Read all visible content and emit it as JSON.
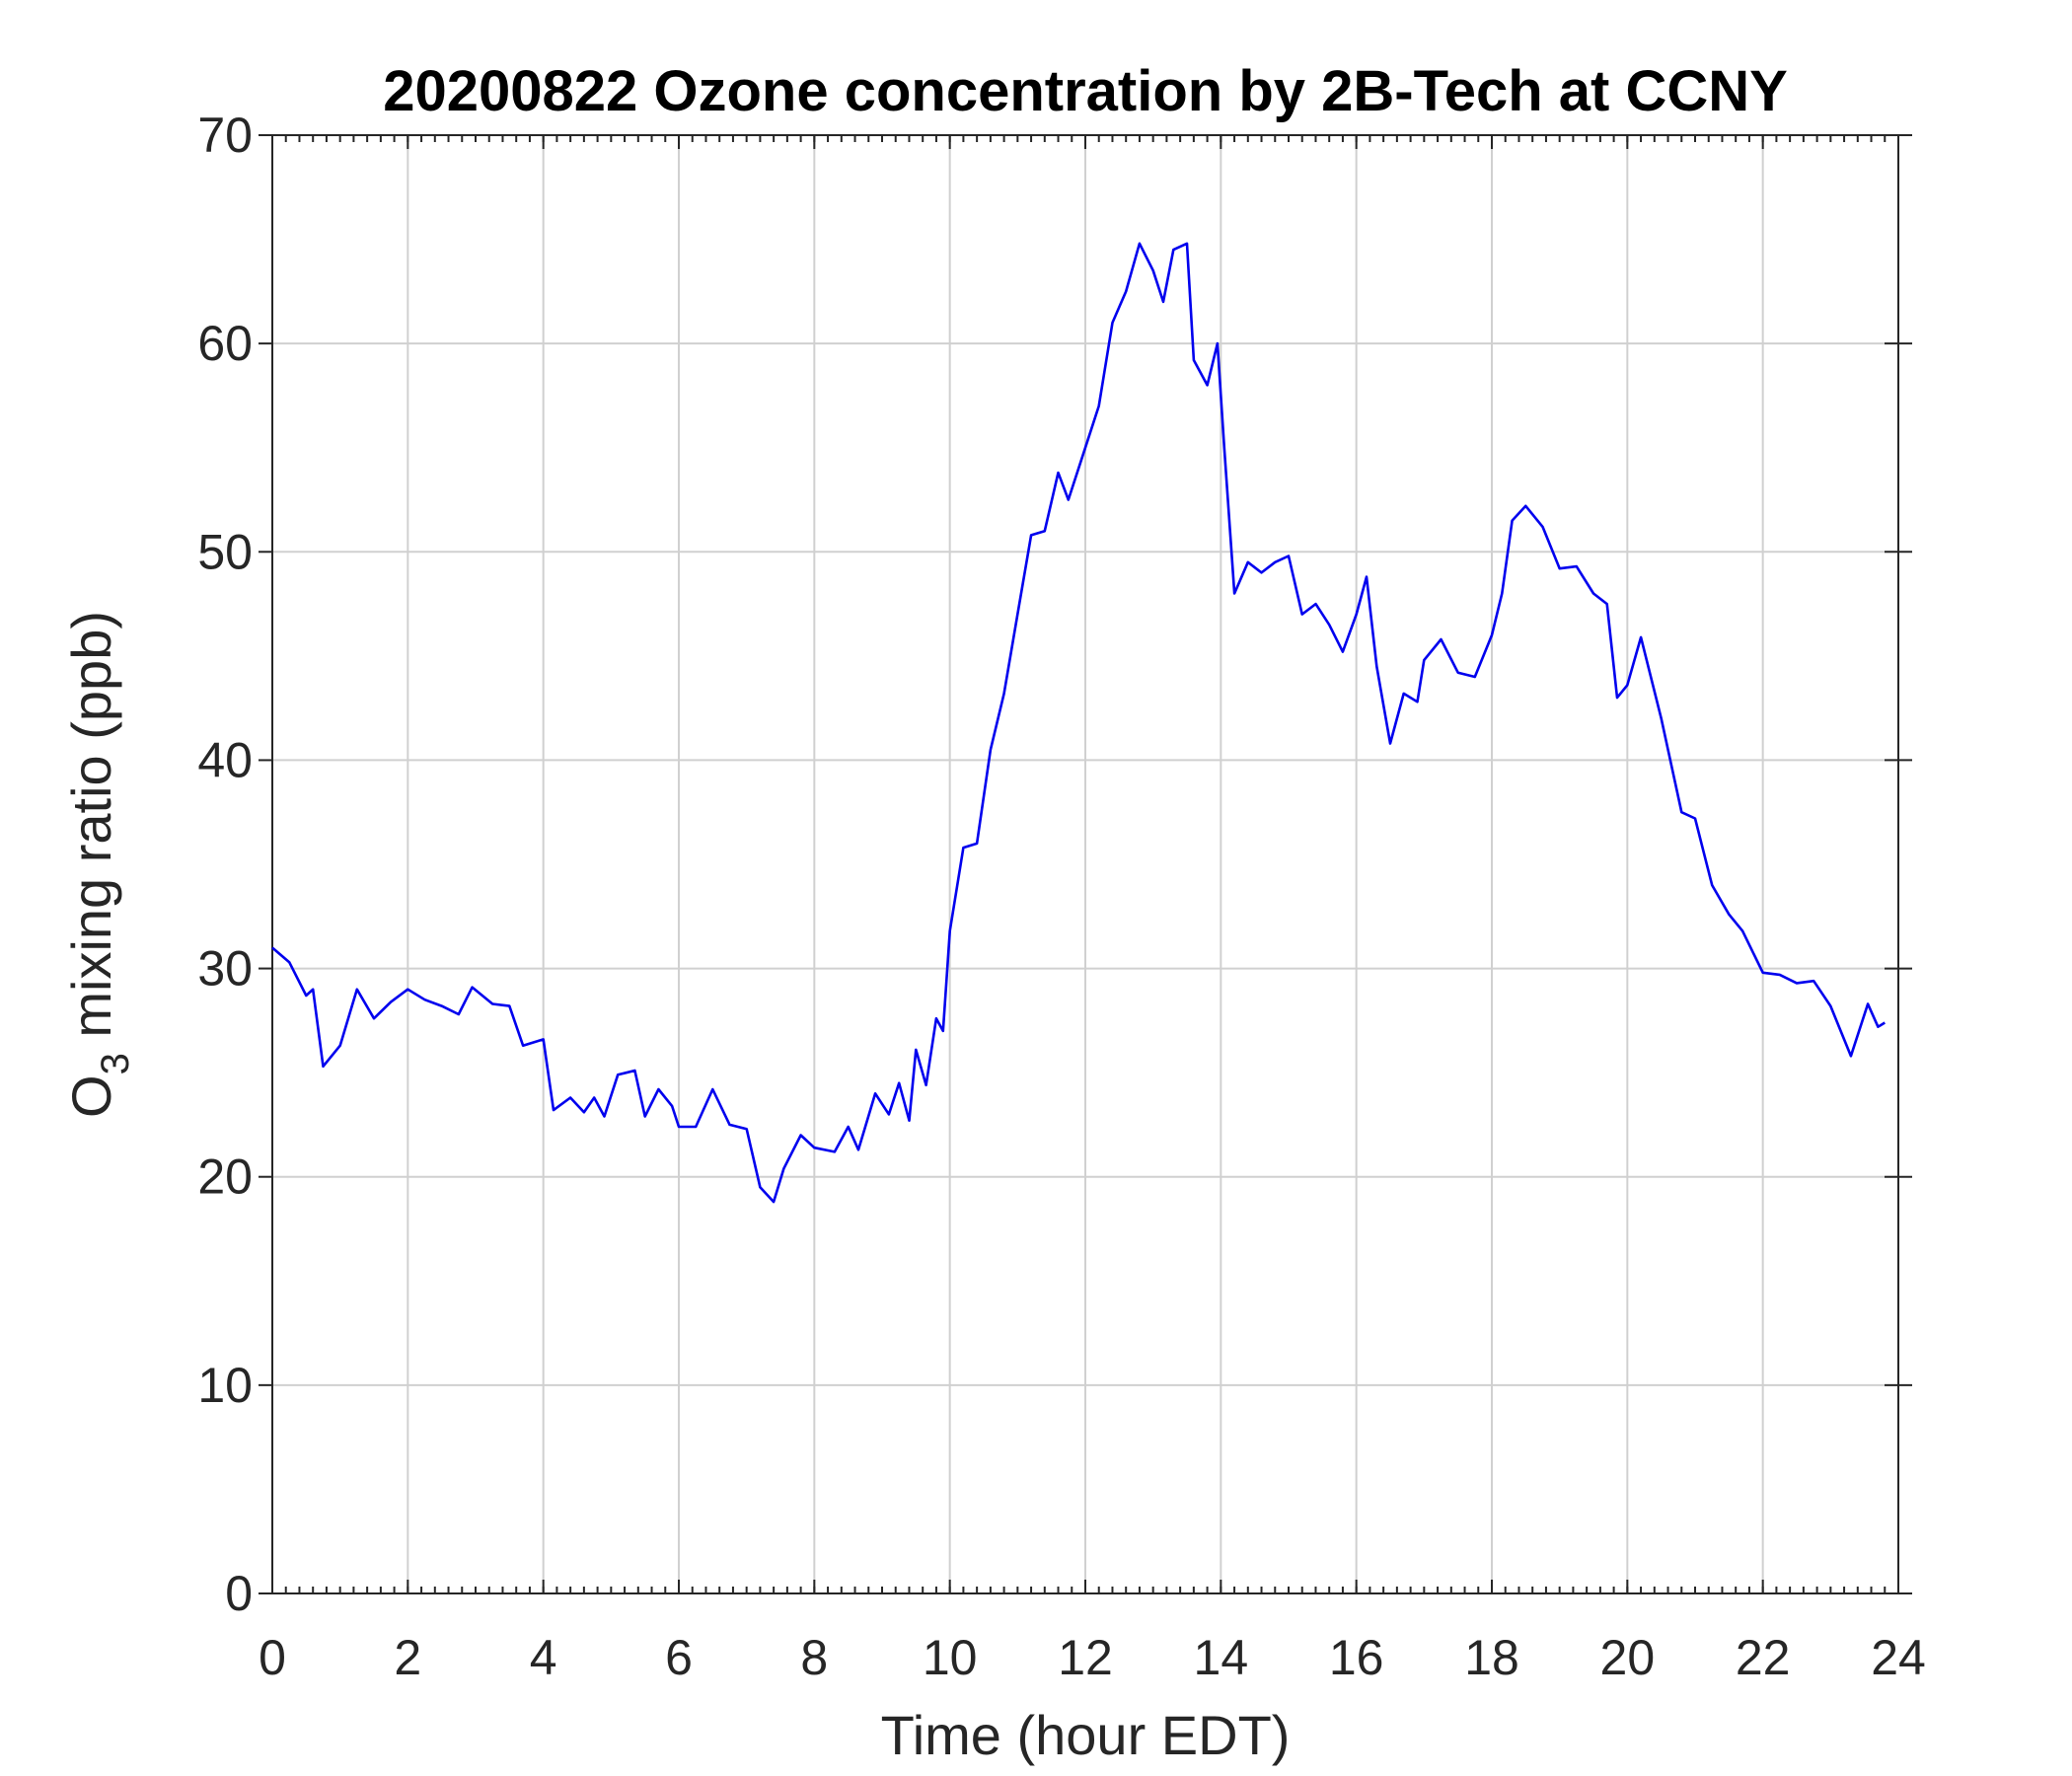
{
  "chart_data": {
    "type": "line",
    "title": "20200822 Ozone concentration by 2B-Tech at CCNY",
    "xlabel": "Time (hour EDT)",
    "ylabel_main": "O",
    "ylabel_sub": "3",
    "ylabel_rest": " mixing ratio (ppb)",
    "xlim": [
      0,
      24
    ],
    "ylim": [
      0,
      70
    ],
    "xticks": [
      "0",
      "2",
      "4",
      "6",
      "8",
      "10",
      "12",
      "14",
      "16",
      "18",
      "20",
      "22",
      "24"
    ],
    "yticks": [
      "0",
      "10",
      "20",
      "30",
      "40",
      "50",
      "60",
      "70"
    ],
    "grid": true,
    "color": "#0000ee",
    "series": [
      {
        "name": "O3",
        "x": [
          0,
          0.25,
          0.5,
          0.6,
          0.75,
          1.0,
          1.25,
          1.5,
          1.75,
          2.0,
          2.25,
          2.5,
          2.75,
          2.95,
          3.25,
          3.5,
          3.7,
          4.0,
          4.15,
          4.4,
          4.6,
          4.75,
          4.9,
          5.1,
          5.35,
          5.5,
          5.7,
          5.9,
          6.0,
          6.25,
          6.5,
          6.75,
          7.0,
          7.2,
          7.4,
          7.55,
          7.8,
          8.0,
          8.3,
          8.5,
          8.65,
          8.9,
          9.1,
          9.25,
          9.4,
          9.5,
          9.65,
          9.8,
          9.9,
          10.0,
          10.2,
          10.4,
          10.6,
          10.8,
          11.0,
          11.2,
          11.4,
          11.6,
          11.75,
          12.0,
          12.2,
          12.4,
          12.6,
          12.8,
          13.0,
          13.15,
          13.3,
          13.5,
          13.6,
          13.8,
          13.95,
          14.05,
          14.2,
          14.4,
          14.6,
          14.8,
          15.0,
          15.2,
          15.4,
          15.6,
          15.8,
          16.0,
          16.15,
          16.3,
          16.5,
          16.7,
          16.9,
          17.0,
          17.25,
          17.5,
          17.75,
          18.0,
          18.15,
          18.3,
          18.5,
          18.75,
          19.0,
          19.25,
          19.5,
          19.7,
          19.85,
          20.0,
          20.2,
          20.5,
          20.8,
          21.0,
          21.25,
          21.5,
          21.7,
          22.0,
          22.25,
          22.5,
          22.75,
          23.0,
          23.3,
          23.55,
          23.7,
          23.8
        ],
        "y": [
          31,
          30.3,
          28.7,
          29,
          25.3,
          26.3,
          29,
          27.6,
          28.4,
          29,
          28.5,
          28.2,
          27.8,
          29.1,
          28.3,
          28.2,
          26.3,
          26.6,
          23.2,
          23.8,
          23.1,
          23.8,
          22.9,
          24.9,
          25.1,
          22.9,
          24.2,
          23.4,
          22.4,
          22.4,
          24.2,
          22.5,
          22.3,
          19.5,
          18.8,
          20.4,
          22,
          21.4,
          21.2,
          22.4,
          21.3,
          24,
          23,
          24.5,
          22.7,
          26.1,
          24.4,
          27.6,
          27,
          31.8,
          35.8,
          36,
          40.5,
          43.2,
          47,
          50.8,
          51,
          53.8,
          52.5,
          55,
          57,
          61,
          62.5,
          64.8,
          63.5,
          62,
          64.5,
          64.8,
          59.2,
          58,
          60,
          55,
          48,
          49.5,
          49,
          49.5,
          49.8,
          47,
          47.5,
          46.5,
          45.2,
          47,
          48.8,
          44.5,
          40.8,
          43.2,
          42.8,
          44.8,
          45.8,
          44.2,
          44,
          46,
          48,
          51.5,
          52.2,
          51.2,
          49.2,
          49.3,
          48,
          47.5,
          43,
          43.6,
          45.9,
          42,
          37.5,
          37.2,
          34,
          32.6,
          31.8,
          29.8,
          29.7,
          29.3,
          29.4,
          28.2,
          25.8,
          28.3,
          27.2,
          27.4
        ]
      }
    ]
  }
}
